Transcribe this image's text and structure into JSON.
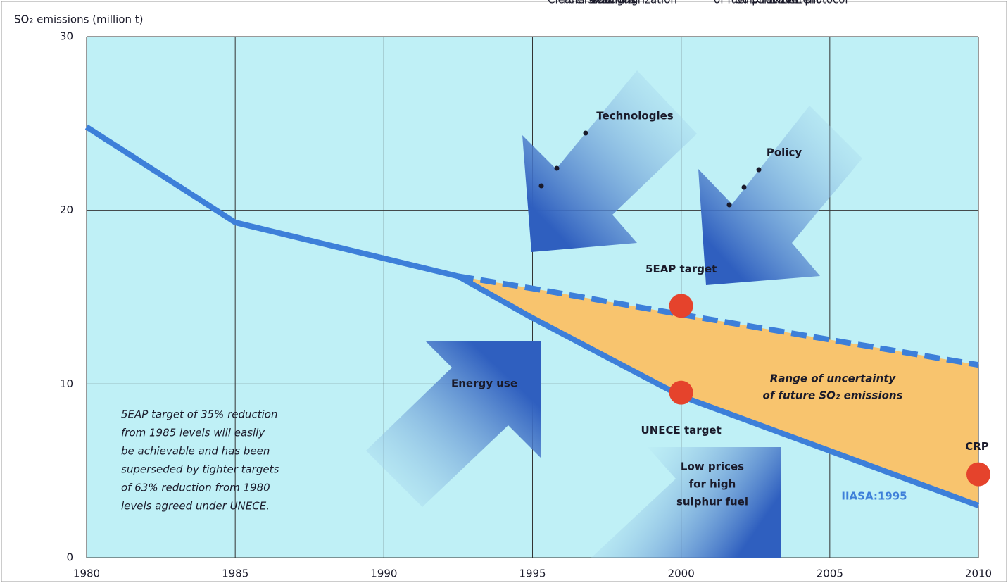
{
  "chart_data": {
    "type": "line",
    "y_label": "SO₂ emissions (million t)",
    "x": [
      1980,
      1985,
      1992.5,
      1995,
      2000,
      2010
    ],
    "series": [
      {
        "color": "#3d7fd9",
        "values": [
          24.8,
          19.3,
          16.2,
          13.8,
          9.3,
          3.0
        ]
      },
      {
        "color": "#3d7fd9",
        "dashed": true,
        "values": [
          null,
          null,
          16.2,
          15.5,
          14.0,
          11.1
        ]
      }
    ],
    "fill_between_color": "#f8c46e",
    "xlim": [
      1980,
      2010
    ],
    "ylim": [
      0,
      30
    ],
    "xticks": [
      1980,
      1985,
      1990,
      1995,
      2000,
      2005,
      2010
    ],
    "yticks": [
      0,
      10,
      20,
      30
    ],
    "grid": true,
    "points": [
      {
        "x": 2000,
        "y": 14.5,
        "label": "5EAP target"
      },
      {
        "x": 2000,
        "y": 9.5,
        "label": "UNECE target"
      },
      {
        "x": 2010,
        "y": 4.8,
        "label": "CRP"
      }
    ],
    "point_color": "#e5432c",
    "annotations": {
      "technologies": {
        "title": "Technologies",
        "items": [
          [
            "Fuel gas",
            "desulphurization"
          ],
          [
            "Fuel switching"
          ],
          [
            "Cleaner coal"
          ]
        ]
      },
      "policy": {
        "title": "Policy",
        "items": [
          [
            "UNECE protocol"
          ],
          [
            "LCPD"
          ],
          [
            "Sulphur content",
            "of fuel Directive"
          ]
        ]
      },
      "energy_use": "Energy use",
      "low_prices": [
        "Low prices",
        "for high",
        "sulphur fuel"
      ],
      "uncertainty": [
        "Range of uncertainty",
        "of future SO₂ emissions"
      ],
      "source": "IIASA:1995",
      "note": [
        "5EAP target of 35% reduction",
        "from 1985 levels will easily",
        "be achievable and has been",
        "superseded by tighter targets",
        "of 63% reduction from 1980",
        "levels agreed under UNECE."
      ]
    }
  }
}
